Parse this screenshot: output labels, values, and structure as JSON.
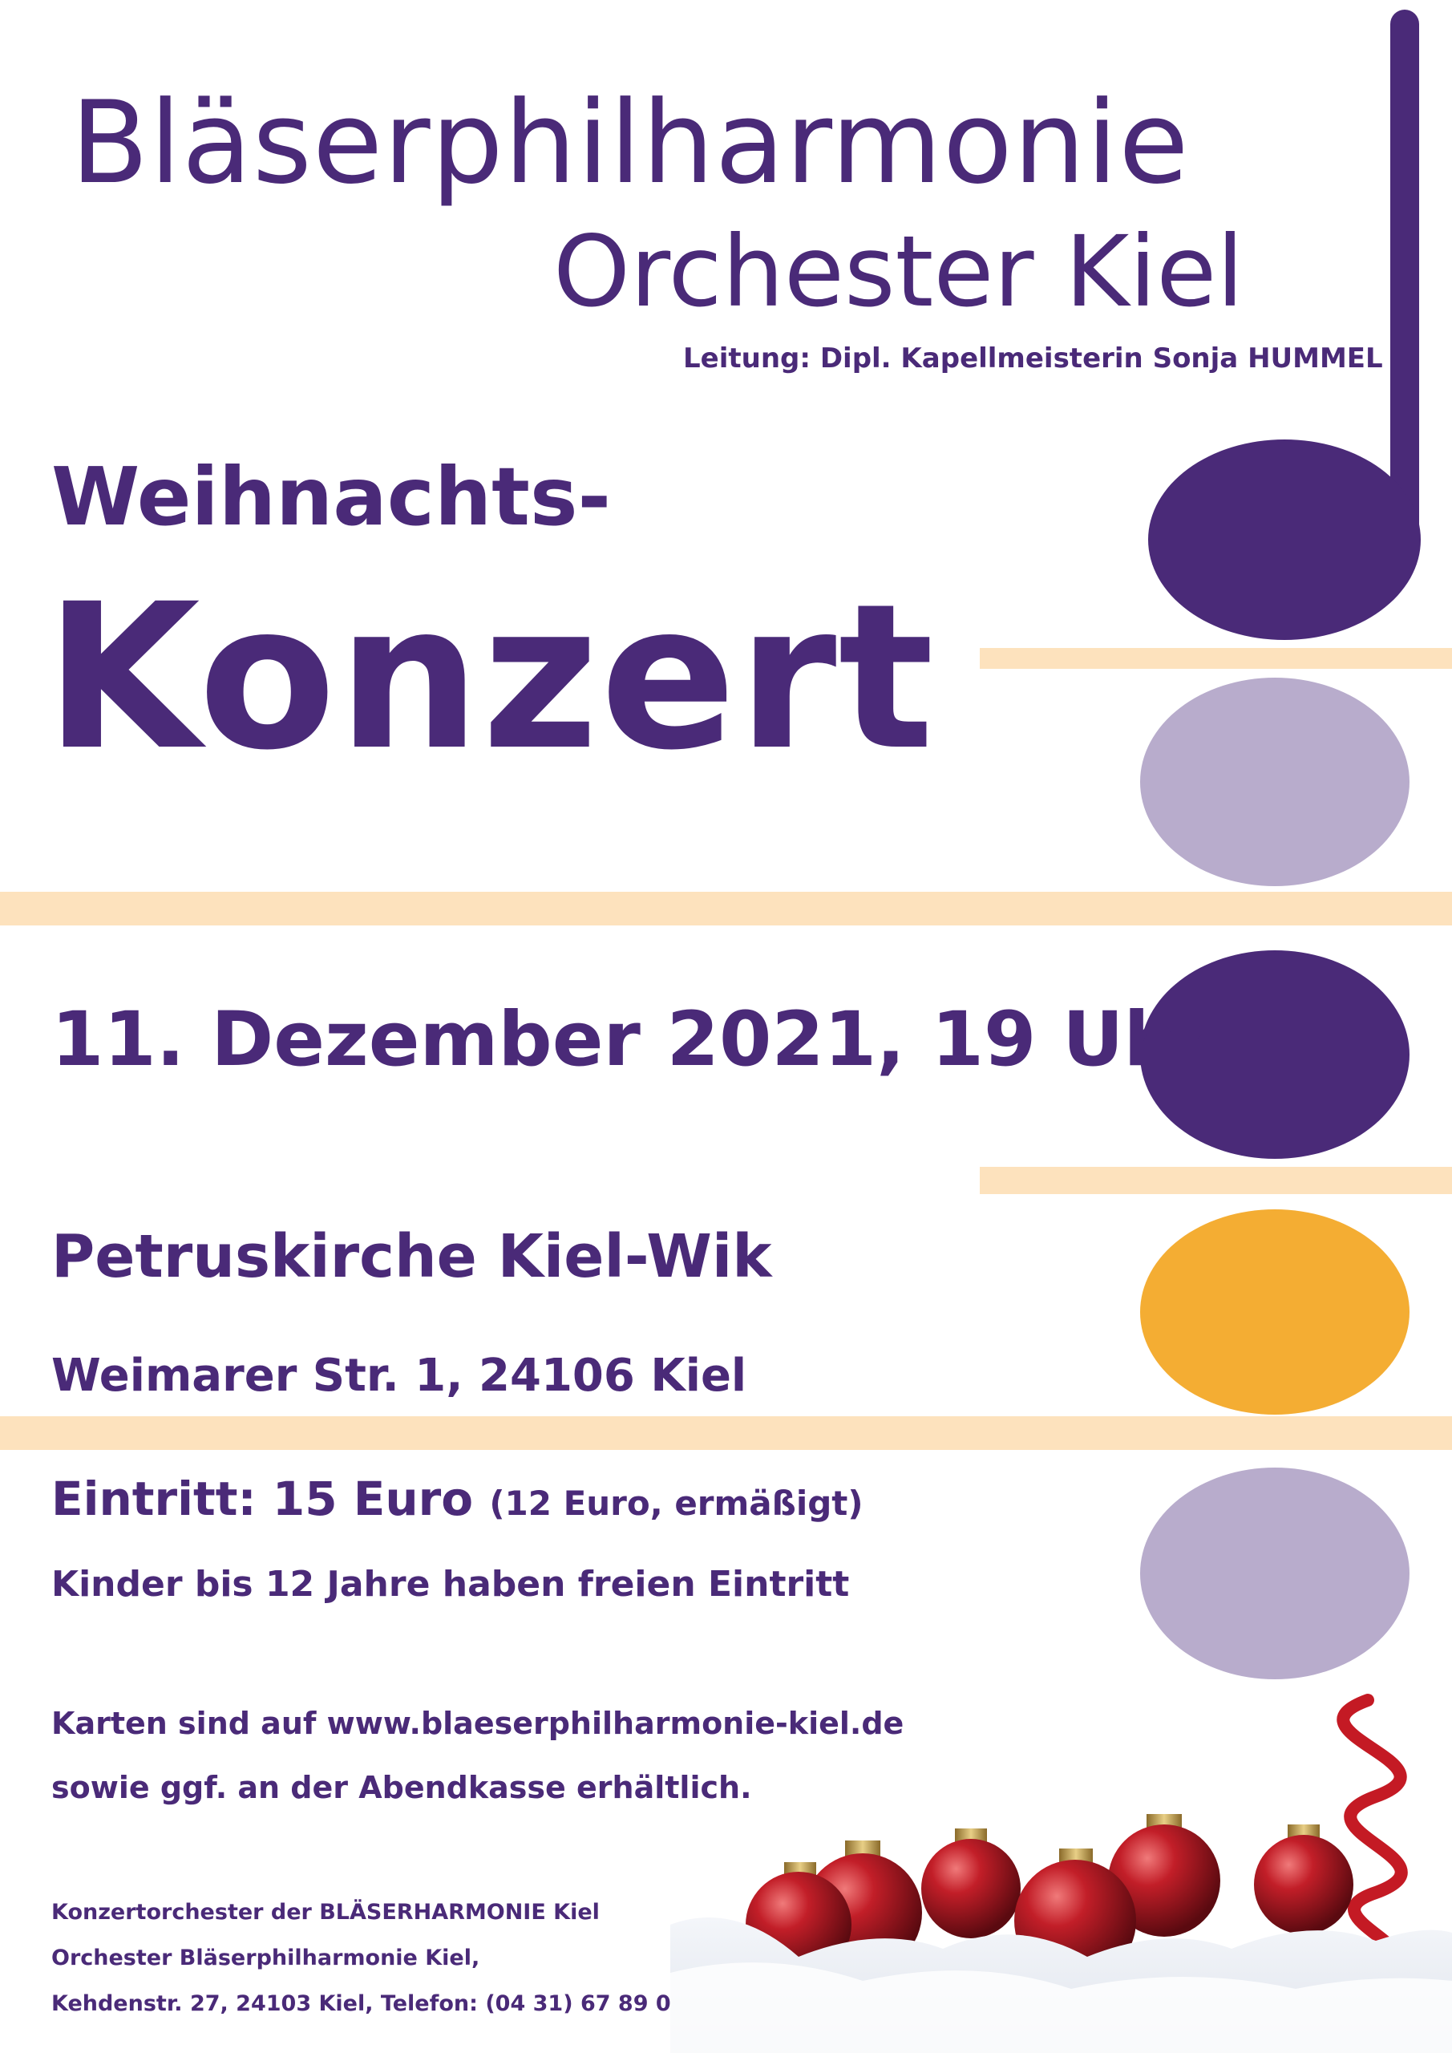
{
  "header": {
    "org_name": "Bläserphilharmonie",
    "org_sub": "Orchester Kiel",
    "leitung": "Leitung: Dipl. Kapellmeisterin Sonja HUMMEL"
  },
  "title": {
    "line1": "Weihnachts-",
    "line2": "Konzert"
  },
  "event": {
    "date": "11. Dezember 2021, 19 Uhr",
    "venue": "Petruskirche Kiel-Wik",
    "address": "Weimarer Str. 1, 24106 Kiel"
  },
  "pricing": {
    "main": "Eintritt: 15 Euro",
    "reduced": "(12 Euro, ermäßigt)",
    "kinder": "Kinder bis 12 Jahre haben freien Eintritt"
  },
  "tickets": {
    "line1": "Karten sind auf www.blaeserphilharmonie-kiel.de",
    "line2": "sowie ggf. an der Abendkasse erhältlich."
  },
  "footer": {
    "line1": "Konzertorchester der BLÄSERHARMONIE Kiel",
    "line2": "Orchester Bläserphilharmonie Kiel,",
    "line3": "Kehdenstr. 27, 24103 Kiel, Telefon: (04 31) 67 89 05"
  },
  "colors": {
    "primary_purple": "#4a2a78",
    "lavender": "#b8accc",
    "orange": "#f4ad33",
    "staff_cream": "#fde2bd",
    "ornament_red": "#b01822"
  }
}
